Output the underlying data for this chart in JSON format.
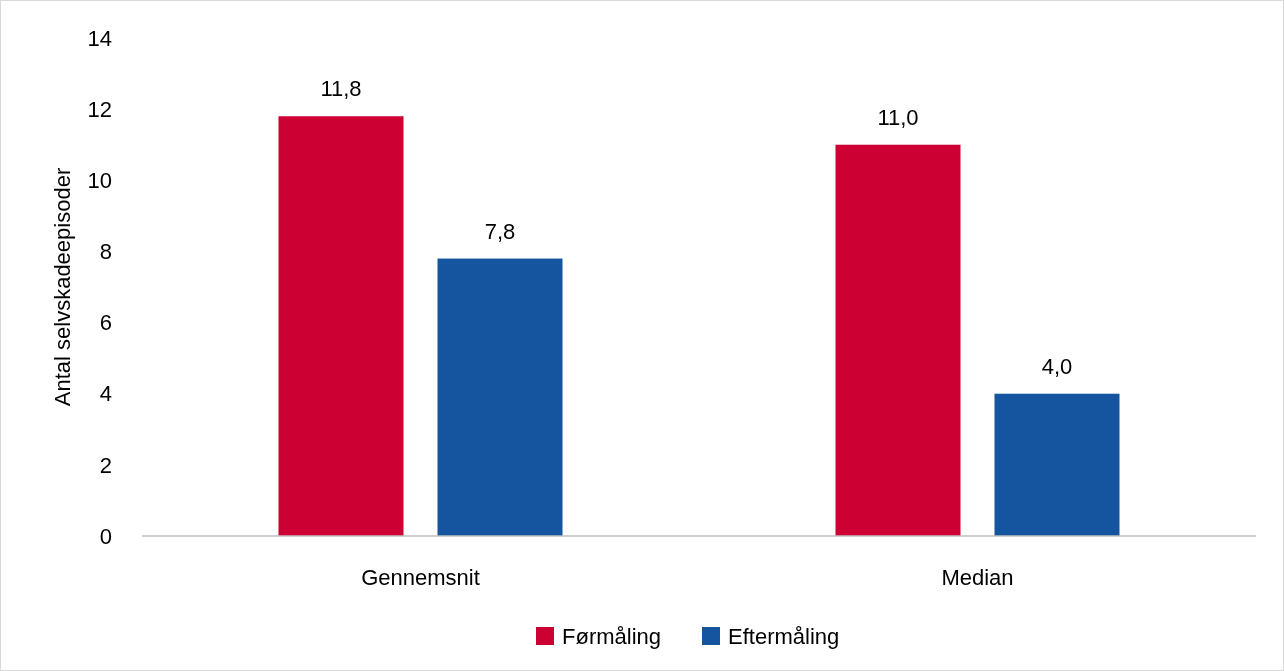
{
  "chart_data": {
    "type": "bar",
    "ylabel": "Antal selvskadeepisoder",
    "categories": [
      "Gennemsnit",
      "Median"
    ],
    "series": [
      {
        "name": "Førmåling",
        "color": "#cc0033",
        "values": [
          11.8,
          11.0
        ],
        "value_labels": [
          "11,8",
          "11,0"
        ]
      },
      {
        "name": "Eftermåling",
        "color": "#1555a0",
        "values": [
          7.8,
          4.0
        ],
        "value_labels": [
          "7,8",
          "4,0"
        ]
      }
    ],
    "ylim": [
      0,
      14
    ],
    "yticks": [
      0,
      2,
      4,
      6,
      8,
      10,
      12,
      14
    ],
    "grid": false,
    "legend": "bottom"
  }
}
